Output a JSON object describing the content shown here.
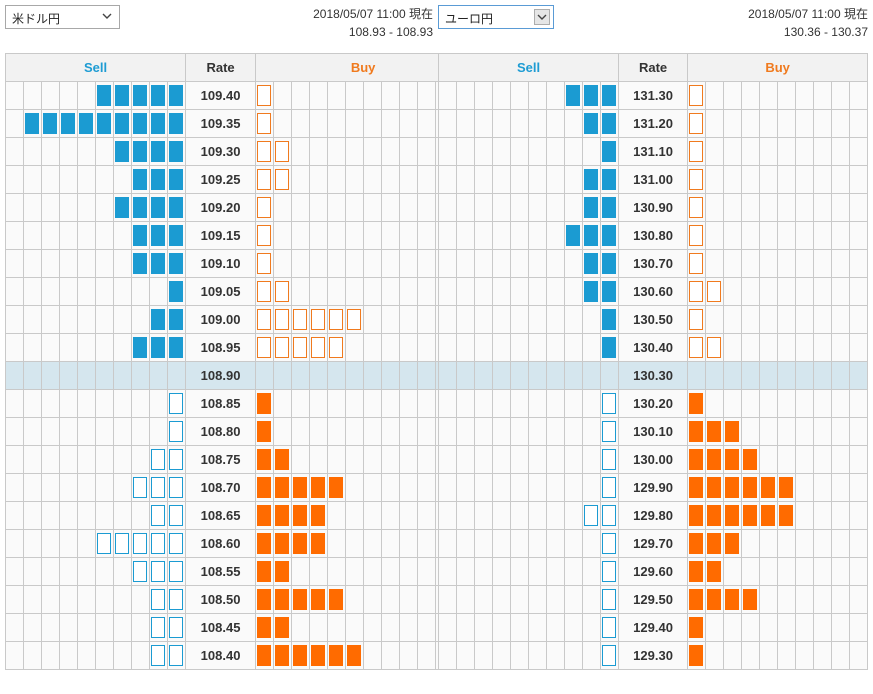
{
  "panels": [
    {
      "currency_select": {
        "selected": "米ドル円"
      },
      "timestamp": "2018/05/07 11:00 現在",
      "spread": "108.93 - 108.93",
      "header": {
        "sell": "Sell",
        "rate": "Rate",
        "buy": "Buy"
      },
      "current_rate": "108.90",
      "rows": [
        {
          "rate": "109.40",
          "sell_filled": 5,
          "sell_outline": 0,
          "buy_filled": 0,
          "buy_outline": 1
        },
        {
          "rate": "109.35",
          "sell_filled": 9,
          "sell_outline": 0,
          "buy_filled": 0,
          "buy_outline": 1
        },
        {
          "rate": "109.30",
          "sell_filled": 4,
          "sell_outline": 0,
          "buy_filled": 0,
          "buy_outline": 2
        },
        {
          "rate": "109.25",
          "sell_filled": 3,
          "sell_outline": 0,
          "buy_filled": 0,
          "buy_outline": 2
        },
        {
          "rate": "109.20",
          "sell_filled": 4,
          "sell_outline": 0,
          "buy_filled": 0,
          "buy_outline": 1
        },
        {
          "rate": "109.15",
          "sell_filled": 3,
          "sell_outline": 0,
          "buy_filled": 0,
          "buy_outline": 1
        },
        {
          "rate": "109.10",
          "sell_filled": 3,
          "sell_outline": 0,
          "buy_filled": 0,
          "buy_outline": 1
        },
        {
          "rate": "109.05",
          "sell_filled": 1,
          "sell_outline": 0,
          "buy_filled": 0,
          "buy_outline": 2
        },
        {
          "rate": "109.00",
          "sell_filled": 2,
          "sell_outline": 0,
          "buy_filled": 0,
          "buy_outline": 6
        },
        {
          "rate": "108.95",
          "sell_filled": 3,
          "sell_outline": 0,
          "buy_filled": 0,
          "buy_outline": 5
        },
        {
          "rate": "108.90",
          "sell_filled": 0,
          "sell_outline": 0,
          "buy_filled": 0,
          "buy_outline": 0
        },
        {
          "rate": "108.85",
          "sell_filled": 0,
          "sell_outline": 1,
          "buy_filled": 1,
          "buy_outline": 0
        },
        {
          "rate": "108.80",
          "sell_filled": 0,
          "sell_outline": 1,
          "buy_filled": 1,
          "buy_outline": 0
        },
        {
          "rate": "108.75",
          "sell_filled": 0,
          "sell_outline": 2,
          "buy_filled": 2,
          "buy_outline": 0
        },
        {
          "rate": "108.70",
          "sell_filled": 0,
          "sell_outline": 3,
          "buy_filled": 5,
          "buy_outline": 0
        },
        {
          "rate": "108.65",
          "sell_filled": 0,
          "sell_outline": 2,
          "buy_filled": 4,
          "buy_outline": 0
        },
        {
          "rate": "108.60",
          "sell_filled": 0,
          "sell_outline": 5,
          "buy_filled": 4,
          "buy_outline": 0
        },
        {
          "rate": "108.55",
          "sell_filled": 0,
          "sell_outline": 3,
          "buy_filled": 2,
          "buy_outline": 0
        },
        {
          "rate": "108.50",
          "sell_filled": 0,
          "sell_outline": 2,
          "buy_filled": 5,
          "buy_outline": 0
        },
        {
          "rate": "108.45",
          "sell_filled": 0,
          "sell_outline": 2,
          "buy_filled": 2,
          "buy_outline": 0
        },
        {
          "rate": "108.40",
          "sell_filled": 0,
          "sell_outline": 2,
          "buy_filled": 6,
          "buy_outline": 0
        }
      ]
    },
    {
      "currency_select": {
        "selected": "ユーロ円"
      },
      "timestamp": "2018/05/07 11:00 現在",
      "spread": "130.36 - 130.37",
      "header": {
        "sell": "Sell",
        "rate": "Rate",
        "buy": "Buy"
      },
      "current_rate": "130.30",
      "rows": [
        {
          "rate": "131.30",
          "sell_filled": 3,
          "sell_outline": 0,
          "buy_filled": 0,
          "buy_outline": 1
        },
        {
          "rate": "131.20",
          "sell_filled": 2,
          "sell_outline": 0,
          "buy_filled": 0,
          "buy_outline": 1
        },
        {
          "rate": "131.10",
          "sell_filled": 1,
          "sell_outline": 0,
          "buy_filled": 0,
          "buy_outline": 1
        },
        {
          "rate": "131.00",
          "sell_filled": 2,
          "sell_outline": 0,
          "buy_filled": 0,
          "buy_outline": 1
        },
        {
          "rate": "130.90",
          "sell_filled": 2,
          "sell_outline": 0,
          "buy_filled": 0,
          "buy_outline": 1
        },
        {
          "rate": "130.80",
          "sell_filled": 3,
          "sell_outline": 0,
          "buy_filled": 0,
          "buy_outline": 1
        },
        {
          "rate": "130.70",
          "sell_filled": 2,
          "sell_outline": 0,
          "buy_filled": 0,
          "buy_outline": 1
        },
        {
          "rate": "130.60",
          "sell_filled": 2,
          "sell_outline": 0,
          "buy_filled": 0,
          "buy_outline": 2
        },
        {
          "rate": "130.50",
          "sell_filled": 1,
          "sell_outline": 0,
          "buy_filled": 0,
          "buy_outline": 1
        },
        {
          "rate": "130.40",
          "sell_filled": 1,
          "sell_outline": 0,
          "buy_filled": 0,
          "buy_outline": 2
        },
        {
          "rate": "130.30",
          "sell_filled": 0,
          "sell_outline": 0,
          "buy_filled": 0,
          "buy_outline": 0
        },
        {
          "rate": "130.20",
          "sell_filled": 0,
          "sell_outline": 1,
          "buy_filled": 1,
          "buy_outline": 0
        },
        {
          "rate": "130.10",
          "sell_filled": 0,
          "sell_outline": 1,
          "buy_filled": 3,
          "buy_outline": 0
        },
        {
          "rate": "130.00",
          "sell_filled": 0,
          "sell_outline": 1,
          "buy_filled": 4,
          "buy_outline": 0
        },
        {
          "rate": "129.90",
          "sell_filled": 0,
          "sell_outline": 1,
          "buy_filled": 6,
          "buy_outline": 0
        },
        {
          "rate": "129.80",
          "sell_filled": 0,
          "sell_outline": 2,
          "buy_filled": 6,
          "buy_outline": 0
        },
        {
          "rate": "129.70",
          "sell_filled": 0,
          "sell_outline": 1,
          "buy_filled": 3,
          "buy_outline": 0
        },
        {
          "rate": "129.60",
          "sell_filled": 0,
          "sell_outline": 1,
          "buy_filled": 2,
          "buy_outline": 0
        },
        {
          "rate": "129.50",
          "sell_filled": 0,
          "sell_outline": 1,
          "buy_filled": 4,
          "buy_outline": 0
        },
        {
          "rate": "129.40",
          "sell_filled": 0,
          "sell_outline": 1,
          "buy_filled": 1,
          "buy_outline": 0
        },
        {
          "rate": "129.30",
          "sell_filled": 0,
          "sell_outline": 1,
          "buy_filled": 1,
          "buy_outline": 0
        }
      ]
    }
  ],
  "colors": {
    "sell": "#1b9bd2",
    "buy_filled": "#ff6b00",
    "buy_outline": "#f07a1e",
    "current_row": "#d5e6ee"
  }
}
